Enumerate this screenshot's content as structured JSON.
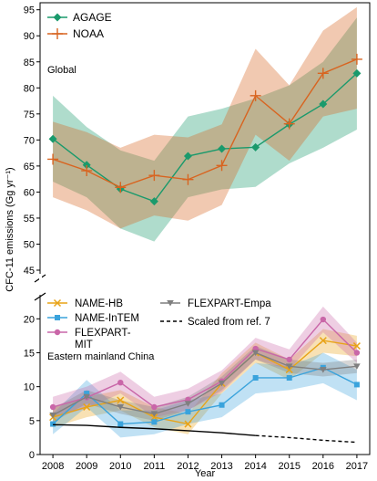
{
  "chart_data": {
    "type": "line",
    "xlabel": "Year",
    "ylabel": "CFC-11 emissions (Gg yr⁻¹)",
    "x": [
      2008,
      2009,
      2010,
      2011,
      2012,
      2013,
      2014,
      2015,
      2016,
      2017
    ],
    "colors": {
      "AGAGE": "#1a9a6c",
      "NOAA": "#d86420",
      "NAME-HB": "#e8a317",
      "NAME-InTEM": "#3aa3dc",
      "FLEXPART-MIT": "#c966a8",
      "FLEXPART-Empa": "#7f7f7f",
      "Scaled": "#000000"
    },
    "panels": [
      {
        "id": "global",
        "label": "Global",
        "ylim": [
          45,
          96
        ],
        "yticks": [
          45,
          50,
          55,
          60,
          65,
          70,
          75,
          80,
          85,
          90,
          95
        ],
        "series": [
          {
            "name": "AGAGE",
            "key": "AGAGE",
            "marker": "diamond",
            "values": [
              70.2,
              65.2,
              60.6,
              58.2,
              66.9,
              68.3,
              68.6,
              73.0,
              76.9,
              82.8
            ],
            "lower": [
              62.0,
              59.0,
              53.0,
              50.5,
              59.0,
              60.5,
              61.0,
              65.5,
              68.5,
              72.0
            ],
            "upper": [
              78.5,
              72.5,
              68.0,
              66.0,
              74.5,
              76.0,
              78.0,
              80.5,
              85.0,
              93.5
            ]
          },
          {
            "name": "NOAA",
            "key": "NOAA",
            "marker": "plus",
            "values": [
              66.3,
              64.1,
              60.9,
              63.2,
              62.4,
              65.1,
              78.5,
              73.1,
              82.8,
              85.5
            ],
            "lower": [
              59.0,
              56.5,
              53.0,
              55.5,
              54.5,
              57.5,
              71.0,
              66.0,
              74.5,
              76.0
            ],
            "upper": [
              73.5,
              71.5,
              68.5,
              71.0,
              70.5,
              73.0,
              87.5,
              80.5,
              91.0,
              95.5
            ]
          }
        ],
        "legend": [
          "AGAGE",
          "NOAA"
        ]
      },
      {
        "id": "eastern-china",
        "label": "Eastern mainland China",
        "ylim": [
          0,
          23
        ],
        "yticks": [
          0,
          5,
          10,
          15,
          20
        ],
        "axis_break": true,
        "series": [
          {
            "name": "NAME-HB",
            "key": "NAME-HB",
            "marker": "x",
            "values": [
              5.5,
              7.0,
              8.0,
              5.5,
              4.5,
              10.5,
              15.0,
              12.5,
              16.8,
              16.0
            ],
            "lower": [
              4.0,
              5.5,
              6.5,
              4.0,
              3.0,
              9.0,
              13.5,
              11.0,
              15.0,
              14.5
            ],
            "upper": [
              7.0,
              8.5,
              9.5,
              7.0,
              6.0,
              12.0,
              16.5,
              14.0,
              18.5,
              17.5
            ]
          },
          {
            "name": "NAME-InTEM",
            "key": "NAME-InTEM",
            "marker": "square",
            "values": [
              4.5,
              9.0,
              4.5,
              4.8,
              6.3,
              7.3,
              11.3,
              11.3,
              12.8,
              10.3
            ],
            "lower": [
              3.0,
              7.0,
              2.5,
              3.0,
              4.5,
              5.5,
              9.0,
              9.5,
              10.5,
              8.0
            ],
            "upper": [
              6.0,
              11.0,
              6.5,
              6.5,
              8.0,
              9.0,
              13.5,
              13.0,
              15.0,
              12.5
            ]
          },
          {
            "name": "FLEXPART-\nMIT",
            "key": "FLEXPART-MIT",
            "marker": "circle",
            "values": [
              7.0,
              8.4,
              10.6,
              7.0,
              8.1,
              10.8,
              15.6,
              14.0,
              19.9,
              15.0
            ],
            "lower": [
              5.5,
              6.8,
              9.0,
              5.5,
              6.5,
              9.2,
              14.0,
              12.5,
              18.0,
              13.5
            ],
            "upper": [
              8.5,
              10.0,
              12.2,
              8.5,
              9.7,
              12.4,
              17.2,
              15.5,
              21.8,
              16.5
            ]
          },
          {
            "name": "FLEXPART-Empa",
            "key": "FLEXPART-Empa",
            "marker": "triangle-down",
            "values": [
              5.8,
              8.5,
              7.0,
              6.0,
              7.5,
              10.5,
              15.0,
              13.0,
              12.5,
              13.0
            ],
            "lower": [
              4.8,
              7.5,
              6.0,
              5.0,
              6.5,
              9.5,
              14.0,
              12.0,
              11.5,
              12.0
            ],
            "upper": [
              6.8,
              9.5,
              8.0,
              7.0,
              8.5,
              11.5,
              16.0,
              14.0,
              13.5,
              14.0
            ]
          },
          {
            "name": "Scaled from ref. 7",
            "key": "Scaled",
            "marker": "none",
            "values": [
              4.4,
              4.3,
              4.0,
              3.8,
              3.5,
              3.2,
              2.8,
              2.5,
              2.1,
              1.8
            ],
            "solid_until": 2014
          }
        ],
        "legend": [
          "NAME-HB",
          "NAME-InTEM",
          "FLEXPART-\nMIT",
          "FLEXPART-Empa",
          "Scaled from ref. 7"
        ]
      }
    ]
  }
}
